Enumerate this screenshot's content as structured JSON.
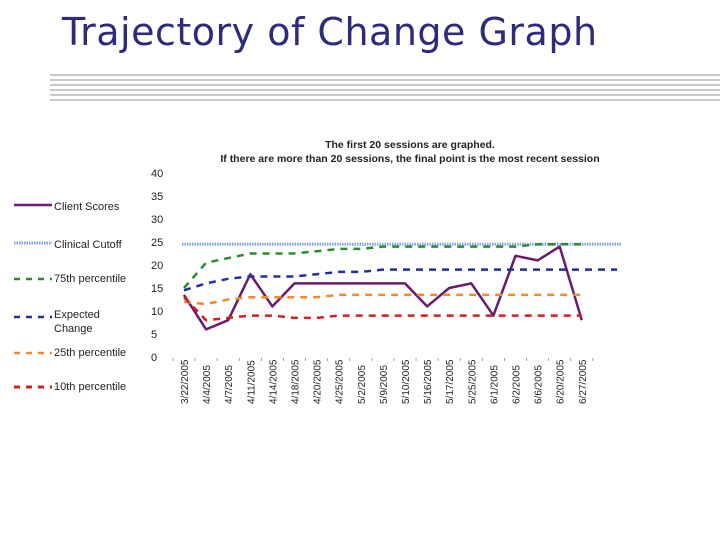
{
  "slide": {
    "title": "Trajectory of Change Graph"
  },
  "chart_data": {
    "type": "line",
    "title_line1": "The first 20 sessions are graphed.",
    "title_line2": "If there are more than 20 sessions, the final point is the most recent session",
    "xlabel": "",
    "ylabel": "",
    "ylim": [
      0,
      40
    ],
    "yticks": [
      "0",
      "5",
      "10",
      "15",
      "20",
      "25",
      "30",
      "35",
      "40"
    ],
    "categories": [
      "3/22/2005",
      "4/4/2005",
      "4/7/2005",
      "4/11/2005",
      "4/14/2005",
      "4/18/2005",
      "4/20/2005",
      "4/25/2005",
      "5/2/2005",
      "5/9/2005",
      "5/10/2005",
      "5/16/2005",
      "5/17/2005",
      "5/25/2005",
      "6/1/2005",
      "6/2/2005",
      "6/6/2005",
      "6/20/2005",
      "6/27/2005"
    ],
    "legend_position": "left",
    "series": [
      {
        "name": "Client Scores",
        "color": "#6a1b6a",
        "style": "solid",
        "values": [
          13.5,
          6,
          8,
          18,
          11,
          16,
          16,
          16,
          16,
          16,
          16,
          11,
          15,
          16,
          9,
          22,
          21,
          24,
          8
        ]
      },
      {
        "name": "Clinical Cutoff",
        "color": "#7ea6e0",
        "style": "thick-dotted",
        "values": [
          24.5,
          24.5,
          24.5,
          24.5,
          24.5,
          24.5,
          24.5,
          24.5,
          24.5,
          24.5,
          24.5,
          24.5,
          24.5,
          24.5,
          24.5,
          24.5,
          24.5,
          24.5,
          24.5
        ]
      },
      {
        "name": "75th percentile",
        "color": "#2e8b2e",
        "style": "dashed",
        "values": [
          15,
          20.5,
          21.5,
          22.5,
          22.5,
          22.5,
          23,
          23.5,
          23.5,
          24,
          24,
          24,
          24,
          24,
          24,
          24,
          24.5,
          24.5,
          24.5
        ]
      },
      {
        "name": "Expected Change",
        "color": "#1f2f9e",
        "style": "dashed",
        "values": [
          14.5,
          16,
          17,
          17.5,
          17.5,
          17.5,
          18,
          18.5,
          18.5,
          19,
          19,
          19,
          19,
          19,
          19,
          19,
          19,
          19,
          19
        ]
      },
      {
        "name": "25th percentile",
        "color": "#f08a30",
        "style": "dashed",
        "values": [
          12,
          11.5,
          12.5,
          13,
          13,
          13,
          13,
          13.5,
          13.5,
          13.5,
          13.5,
          13.5,
          13.5,
          13.5,
          13.5,
          13.5,
          13.5,
          13.5,
          13.5
        ]
      },
      {
        "name": "10th percentile",
        "color": "#cc2222",
        "style": "dashed",
        "values": [
          13,
          8,
          8.5,
          9,
          9,
          8.5,
          8.5,
          9,
          9,
          9,
          9,
          9,
          9,
          9,
          9,
          9,
          9,
          9,
          9
        ]
      }
    ],
    "legend_labels": [
      "Client Scores",
      "Clinical Cutoff",
      "75th percentile",
      "Expected Change",
      "25th percentile",
      "10th percentile"
    ]
  }
}
